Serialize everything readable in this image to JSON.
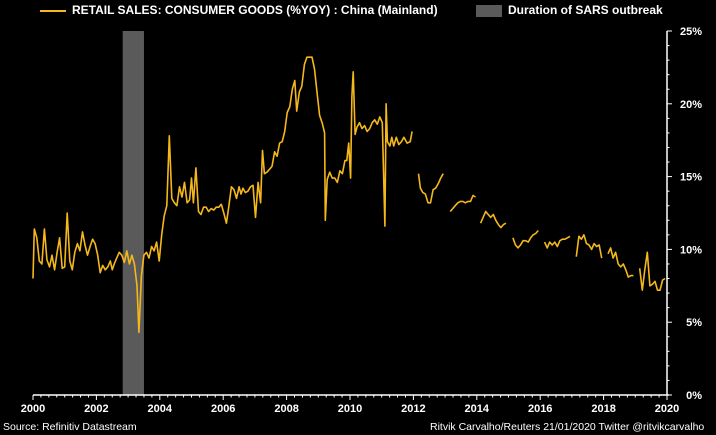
{
  "legend": {
    "series_label": "RETAIL SALES: CONSUMER GOODS (%YOY) : China (Mainland)",
    "shade_label": "Duration of SARS outbreak"
  },
  "footer": {
    "source": "Source: Refinitiv Datastream",
    "credit": "Ritvik Carvalho/Reuters 21/01/2020 Twitter @ritvikcarvalho"
  },
  "colors": {
    "line": "#f5b81c",
    "shade": "#5a5a5a",
    "background": "#000000",
    "axis": "#ffffff"
  },
  "chart_data": {
    "type": "line",
    "title": "",
    "x_ticks": [
      "2000",
      "2002",
      "2004",
      "2006",
      "2008",
      "2010",
      "2012",
      "2014",
      "2016",
      "2018",
      "2020"
    ],
    "y_ticks": [
      "0%",
      "5%",
      "10%",
      "15%",
      "20%",
      "25%"
    ],
    "xlim": [
      2000,
      2020
    ],
    "ylim": [
      0,
      25
    ],
    "y_axis_side": "right",
    "grid": false,
    "legend_position": "top",
    "shaded_region": {
      "label": "Duration of SARS outbreak",
      "x_start": 2002.83,
      "x_end": 2003.5
    },
    "series": [
      {
        "name": "RETAIL SALES: CONSUMER GOODS (%YOY) : China (Mainland)",
        "segments": [
          [
            [
              2000.0,
              8.0
            ],
            [
              2000.04,
              11.4
            ],
            [
              2000.12,
              10.8
            ],
            [
              2000.2,
              9.2
            ],
            [
              2000.28,
              9.0
            ],
            [
              2000.36,
              11.4
            ],
            [
              2000.44,
              9.3
            ],
            [
              2000.52,
              8.8
            ],
            [
              2000.6,
              9.6
            ],
            [
              2000.68,
              8.6
            ],
            [
              2000.76,
              9.8
            ],
            [
              2000.84,
              10.8
            ],
            [
              2000.92,
              8.7
            ],
            [
              2001.0,
              8.8
            ],
            [
              2001.08,
              12.5
            ],
            [
              2001.16,
              9.2
            ],
            [
              2001.24,
              8.6
            ],
            [
              2001.32,
              9.8
            ],
            [
              2001.4,
              10.4
            ],
            [
              2001.48,
              9.9
            ],
            [
              2001.56,
              11.2
            ],
            [
              2001.64,
              10.3
            ],
            [
              2001.72,
              9.6
            ],
            [
              2001.8,
              10.2
            ],
            [
              2001.88,
              10.7
            ],
            [
              2001.96,
              10.4
            ],
            [
              2002.04,
              9.6
            ],
            [
              2002.12,
              8.4
            ],
            [
              2002.2,
              8.9
            ],
            [
              2002.28,
              8.6
            ],
            [
              2002.36,
              8.8
            ],
            [
              2002.44,
              9.2
            ],
            [
              2002.5,
              8.6
            ],
            [
              2002.56,
              9.0
            ],
            [
              2002.64,
              9.4
            ],
            [
              2002.72,
              9.8
            ],
            [
              2002.8,
              9.6
            ],
            [
              2002.88,
              9.1
            ],
            [
              2002.96,
              9.9
            ],
            [
              2003.04,
              9.0
            ],
            [
              2003.12,
              9.6
            ],
            [
              2003.2,
              9.0
            ],
            [
              2003.28,
              7.5
            ],
            [
              2003.34,
              4.3
            ],
            [
              2003.42,
              8.2
            ],
            [
              2003.5,
              9.6
            ],
            [
              2003.58,
              9.8
            ],
            [
              2003.66,
              9.4
            ],
            [
              2003.74,
              10.2
            ],
            [
              2003.82,
              9.9
            ],
            [
              2003.9,
              10.5
            ],
            [
              2003.98,
              9.2
            ],
            [
              2004.06,
              11.0
            ],
            [
              2004.14,
              12.3
            ],
            [
              2004.22,
              13.0
            ],
            [
              2004.3,
              17.8
            ],
            [
              2004.38,
              13.5
            ],
            [
              2004.46,
              13.2
            ],
            [
              2004.54,
              13.0
            ],
            [
              2004.62,
              14.3
            ],
            [
              2004.7,
              13.6
            ],
            [
              2004.78,
              14.6
            ],
            [
              2004.86,
              13.2
            ],
            [
              2004.94,
              13.4
            ],
            [
              2005.0,
              14.9
            ],
            [
              2005.06,
              13.2
            ],
            [
              2005.14,
              15.6
            ],
            [
              2005.22,
              12.6
            ],
            [
              2005.3,
              12.4
            ],
            [
              2005.38,
              12.9
            ],
            [
              2005.46,
              12.9
            ],
            [
              2005.54,
              12.6
            ],
            [
              2005.62,
              12.8
            ],
            [
              2005.7,
              12.7
            ],
            [
              2005.78,
              12.9
            ],
            [
              2005.86,
              12.9
            ],
            [
              2005.94,
              13.1
            ],
            [
              2006.02,
              12.5
            ],
            [
              2006.1,
              11.8
            ],
            [
              2006.18,
              13.0
            ],
            [
              2006.26,
              14.3
            ],
            [
              2006.34,
              14.1
            ],
            [
              2006.42,
              13.5
            ],
            [
              2006.5,
              14.3
            ],
            [
              2006.56,
              13.8
            ],
            [
              2006.62,
              14.2
            ],
            [
              2006.7,
              13.9
            ],
            [
              2006.78,
              14.0
            ],
            [
              2006.86,
              14.3
            ],
            [
              2006.94,
              14.4
            ],
            [
              2007.02,
              12.2
            ],
            [
              2007.1,
              14.6
            ],
            [
              2007.18,
              13.2
            ],
            [
              2007.24,
              16.8
            ],
            [
              2007.3,
              15.2
            ],
            [
              2007.38,
              15.3
            ],
            [
              2007.46,
              15.5
            ],
            [
              2007.54,
              15.7
            ],
            [
              2007.62,
              16.7
            ],
            [
              2007.7,
              16.4
            ],
            [
              2007.78,
              17.3
            ],
            [
              2007.86,
              17.4
            ],
            [
              2007.94,
              18.1
            ],
            [
              2008.02,
              19.4
            ],
            [
              2008.1,
              19.8
            ],
            [
              2008.18,
              21.0
            ],
            [
              2008.26,
              21.6
            ],
            [
              2008.32,
              19.5
            ],
            [
              2008.4,
              20.8
            ],
            [
              2008.48,
              21.2
            ],
            [
              2008.56,
              22.7
            ],
            [
              2008.64,
              23.2
            ],
            [
              2008.72,
              23.2
            ],
            [
              2008.8,
              23.2
            ],
            [
              2008.88,
              22.4
            ],
            [
              2008.96,
              20.8
            ],
            [
              2009.04,
              19.2
            ],
            [
              2009.12,
              18.7
            ],
            [
              2009.2,
              18.0
            ],
            [
              2009.22,
              12.0
            ],
            [
              2009.28,
              14.8
            ],
            [
              2009.36,
              15.3
            ],
            [
              2009.44,
              14.9
            ],
            [
              2009.52,
              14.9
            ],
            [
              2009.6,
              14.6
            ],
            [
              2009.68,
              15.4
            ],
            [
              2009.76,
              15.2
            ],
            [
              2009.84,
              16.1
            ],
            [
              2009.9,
              16.1
            ],
            [
              2009.96,
              17.3
            ],
            [
              2010.02,
              14.9
            ],
            [
              2010.06,
              20.5
            ],
            [
              2010.1,
              22.2
            ],
            [
              2010.16,
              17.9
            ],
            [
              2010.22,
              18.4
            ],
            [
              2010.3,
              18.7
            ],
            [
              2010.38,
              18.3
            ],
            [
              2010.46,
              18.5
            ],
            [
              2010.54,
              18.1
            ],
            [
              2010.62,
              18.3
            ],
            [
              2010.7,
              18.7
            ],
            [
              2010.78,
              18.9
            ],
            [
              2010.86,
              18.6
            ],
            [
              2010.94,
              19.1
            ],
            [
              2011.02,
              18.7
            ],
            [
              2011.1,
              11.6
            ],
            [
              2011.14,
              20.0
            ],
            [
              2011.18,
              17.4
            ],
            [
              2011.26,
              17.1
            ],
            [
              2011.32,
              17.7
            ],
            [
              2011.38,
              17.1
            ],
            [
              2011.46,
              17.7
            ],
            [
              2011.54,
              17.2
            ],
            [
              2011.62,
              17.4
            ],
            [
              2011.7,
              17.7
            ],
            [
              2011.8,
              17.3
            ],
            [
              2011.9,
              17.4
            ],
            [
              2011.96,
              18.1
            ]
          ],
          [
            [
              2012.16,
              15.2
            ],
            [
              2012.22,
              14.2
            ],
            [
              2012.3,
              13.9
            ],
            [
              2012.38,
              13.8
            ],
            [
              2012.46,
              13.2
            ],
            [
              2012.54,
              13.2
            ],
            [
              2012.62,
              14.1
            ],
            [
              2012.7,
              14.2
            ],
            [
              2012.78,
              14.5
            ],
            [
              2012.86,
              14.9
            ],
            [
              2012.94,
              15.2
            ]
          ],
          [
            [
              2013.16,
              12.6
            ],
            [
              2013.24,
              12.8
            ],
            [
              2013.32,
              13.0
            ],
            [
              2013.4,
              13.2
            ],
            [
              2013.48,
              13.3
            ],
            [
              2013.56,
              13.3
            ],
            [
              2013.64,
              13.2
            ],
            [
              2013.72,
              13.3
            ],
            [
              2013.8,
              13.3
            ],
            [
              2013.88,
              13.7
            ],
            [
              2013.96,
              13.6
            ]
          ],
          [
            [
              2014.12,
              11.8
            ],
            [
              2014.2,
              12.2
            ],
            [
              2014.28,
              12.6
            ],
            [
              2014.36,
              12.4
            ],
            [
              2014.44,
              12.2
            ],
            [
              2014.52,
              12.4
            ],
            [
              2014.6,
              12.0
            ],
            [
              2014.68,
              11.7
            ],
            [
              2014.76,
              11.5
            ],
            [
              2014.84,
              11.7
            ],
            [
              2014.92,
              11.8
            ]
          ],
          [
            [
              2015.14,
              10.8
            ],
            [
              2015.22,
              10.3
            ],
            [
              2015.3,
              10.1
            ],
            [
              2015.38,
              10.3
            ],
            [
              2015.46,
              10.6
            ],
            [
              2015.54,
              10.6
            ],
            [
              2015.62,
              10.5
            ],
            [
              2015.7,
              10.8
            ],
            [
              2015.78,
              11.0
            ],
            [
              2015.86,
              11.1
            ],
            [
              2015.94,
              11.3
            ]
          ],
          [
            [
              2016.14,
              10.5
            ],
            [
              2016.22,
              10.1
            ],
            [
              2016.3,
              10.5
            ],
            [
              2016.38,
              10.3
            ],
            [
              2016.46,
              10.5
            ],
            [
              2016.54,
              10.2
            ],
            [
              2016.62,
              10.6
            ],
            [
              2016.7,
              10.7
            ],
            [
              2016.78,
              10.7
            ],
            [
              2016.86,
              10.8
            ],
            [
              2016.94,
              10.9
            ]
          ],
          [
            [
              2017.14,
              9.5
            ],
            [
              2017.22,
              10.9
            ],
            [
              2017.3,
              10.7
            ],
            [
              2017.38,
              11.0
            ],
            [
              2017.46,
              10.4
            ],
            [
              2017.54,
              10.3
            ],
            [
              2017.62,
              10.0
            ],
            [
              2017.7,
              10.4
            ],
            [
              2017.78,
              10.2
            ],
            [
              2017.86,
              10.3
            ],
            [
              2017.94,
              9.4
            ]
          ],
          [
            [
              2018.14,
              9.7
            ],
            [
              2018.22,
              10.1
            ],
            [
              2018.3,
              9.4
            ],
            [
              2018.38,
              9.8
            ],
            [
              2018.46,
              9.0
            ],
            [
              2018.54,
              8.8
            ],
            [
              2018.62,
              9.0
            ],
            [
              2018.7,
              8.6
            ],
            [
              2018.78,
              8.1
            ],
            [
              2018.86,
              8.2
            ],
            [
              2018.94,
              8.2
            ]
          ],
          [
            [
              2019.14,
              8.7
            ],
            [
              2019.22,
              7.2
            ],
            [
              2019.3,
              8.6
            ],
            [
              2019.38,
              9.8
            ],
            [
              2019.46,
              7.5
            ],
            [
              2019.54,
              7.6
            ],
            [
              2019.62,
              7.8
            ],
            [
              2019.7,
              7.2
            ],
            [
              2019.78,
              7.2
            ],
            [
              2019.86,
              7.9
            ],
            [
              2019.94,
              8.0
            ]
          ]
        ]
      }
    ]
  }
}
